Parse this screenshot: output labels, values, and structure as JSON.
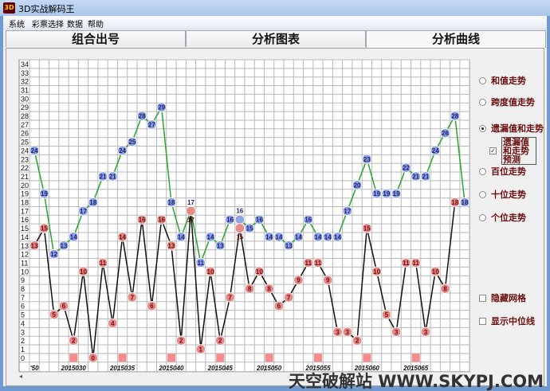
{
  "window": {
    "title": "3D实战解码王",
    "icon_text": "3D"
  },
  "menu": [
    "系统",
    "彩票选择",
    "数据",
    "帮助"
  ],
  "tabs": [
    {
      "label": "组合出号",
      "active": false
    },
    {
      "label": "分析图表",
      "active": false
    },
    {
      "label": "分析曲线",
      "active": true
    }
  ],
  "options": {
    "radios": [
      {
        "label": "和值走势",
        "checked": false
      },
      {
        "label": "跨度值走势",
        "checked": false
      },
      {
        "label": "遗漏值和走势",
        "checked": true
      },
      {
        "label": "百位走势",
        "checked": false
      },
      {
        "label": "十位走势",
        "checked": false
      },
      {
        "label": "个位走势",
        "checked": false
      }
    ],
    "predict": {
      "label": "遗漏值和走势预测",
      "checked": true
    },
    "hide_grid": {
      "label": "隐藏网格",
      "checked": false
    },
    "show_median": {
      "label": "显示中位线",
      "checked": false
    }
  },
  "chart_data": {
    "type": "line",
    "ylim": [
      0,
      34
    ],
    "yticks": [
      0,
      1,
      2,
      3,
      4,
      5,
      6,
      7,
      8,
      9,
      10,
      11,
      12,
      13,
      14,
      15,
      16,
      17,
      18,
      19,
      20,
      21,
      22,
      23,
      24,
      25,
      26,
      27,
      28,
      29,
      30,
      31,
      32,
      33,
      34
    ],
    "grid": true,
    "xtick_labels": [
      {
        "index": 0,
        "label": "'50"
      },
      {
        "index": 4,
        "label": "2015030"
      },
      {
        "index": 9,
        "label": "2015035"
      },
      {
        "index": 14,
        "label": "2015040"
      },
      {
        "index": 19,
        "label": "2015045"
      },
      {
        "index": 24,
        "label": "2015050"
      },
      {
        "index": 29,
        "label": "2015055"
      },
      {
        "index": 34,
        "label": "2015060"
      },
      {
        "index": 39,
        "label": "2015065"
      }
    ],
    "markers_at_zero": [
      4,
      9,
      14,
      19,
      24,
      29,
      34,
      39
    ],
    "series": [
      {
        "color": "#2aa52a",
        "marker": "#8fa3e6",
        "text": "#1a1f6b",
        "values": [
          24,
          19,
          12,
          13,
          14,
          17,
          18,
          21,
          21,
          24,
          25,
          28,
          27,
          29,
          18,
          14,
          17,
          11,
          14,
          13,
          16,
          16,
          15,
          16,
          14,
          14,
          13,
          14,
          16,
          14,
          14,
          14,
          17,
          20,
          23,
          19,
          19,
          19,
          22,
          21,
          21,
          24,
          26,
          28,
          18
        ]
      },
      {
        "color": "#111111",
        "marker": "#e68a8a",
        "text": "#6b0d0d",
        "values": [
          13,
          15,
          5,
          6,
          2,
          10,
          0,
          11,
          4,
          14,
          7,
          16,
          6,
          16,
          13,
          2,
          17,
          1,
          10,
          2,
          7,
          15,
          8,
          10,
          8,
          6,
          7,
          9,
          11,
          11,
          9,
          3,
          3,
          2,
          15,
          10,
          5,
          3,
          11,
          11,
          3,
          10,
          8,
          18
        ]
      }
    ],
    "zero_marker_color": "#f58b8b"
  },
  "watermark": "天空破解站 WWW.SKYPJ.COM",
  "scroll": {
    "left_arrow": "◂"
  }
}
